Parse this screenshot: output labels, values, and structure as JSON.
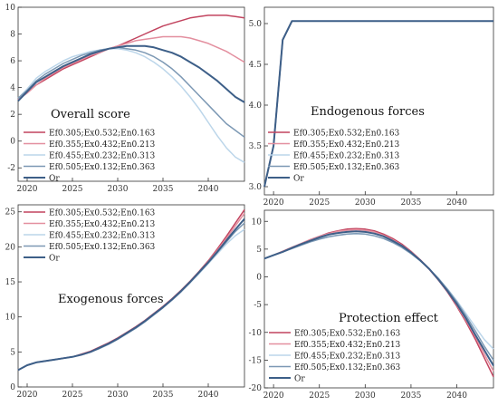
{
  "figure": {
    "series_names": [
      "Ef0.305;Ex0.532;En0.163",
      "Ef0.355;Ex0.432;En0.213",
      "Ef0.455;Ex0.232;En0.313",
      "Ef0.505;Ex0.132;En0.363",
      "Or"
    ],
    "series_colors": [
      "#c2445f",
      "#e38f9f",
      "#bcd6ea",
      "#7c98b4",
      "#3d5f88"
    ]
  },
  "chart_data": [
    {
      "id": "overall",
      "type": "line",
      "title": "Overall score",
      "xlim": [
        2019,
        2044
      ],
      "ylim": [
        -3,
        10
      ],
      "xticks": [
        2020,
        2025,
        2030,
        2035,
        2040
      ],
      "yticks": [
        -2,
        0,
        2,
        4,
        6,
        8,
        10
      ],
      "x": [
        2019,
        2020,
        2021,
        2022,
        2023,
        2024,
        2025,
        2026,
        2027,
        2028,
        2029,
        2030,
        2031,
        2032,
        2033,
        2034,
        2035,
        2036,
        2037,
        2038,
        2039,
        2040,
        2041,
        2042,
        2043,
        2044
      ],
      "series": [
        {
          "name": "Ef0.305;Ex0.532;En0.163",
          "values": [
            3.1,
            3.6,
            4.2,
            4.6,
            5.0,
            5.4,
            5.7,
            6.0,
            6.3,
            6.6,
            6.9,
            7.1,
            7.4,
            7.7,
            8.0,
            8.3,
            8.6,
            8.8,
            9.0,
            9.2,
            9.3,
            9.4,
            9.4,
            9.4,
            9.3,
            9.2
          ]
        },
        {
          "name": "Ef0.355;Ex0.432;En0.213",
          "values": [
            3.1,
            3.6,
            4.2,
            4.7,
            5.1,
            5.5,
            5.8,
            6.1,
            6.4,
            6.6,
            6.9,
            7.1,
            7.3,
            7.5,
            7.6,
            7.7,
            7.8,
            7.8,
            7.8,
            7.7,
            7.5,
            7.3,
            7.0,
            6.7,
            6.3,
            5.9
          ]
        },
        {
          "name": "Ef0.455;Ex0.232;En0.313",
          "values": [
            3.2,
            3.9,
            4.7,
            5.2,
            5.6,
            6.0,
            6.3,
            6.5,
            6.7,
            6.8,
            6.9,
            6.9,
            6.8,
            6.6,
            6.3,
            5.9,
            5.4,
            4.8,
            4.1,
            3.3,
            2.4,
            1.4,
            0.4,
            -0.5,
            -1.2,
            -1.6
          ]
        },
        {
          "name": "Ef0.505;Ex0.132;En0.363",
          "values": [
            3.2,
            3.8,
            4.5,
            5.0,
            5.4,
            5.8,
            6.1,
            6.4,
            6.6,
            6.8,
            6.9,
            7.0,
            6.9,
            6.8,
            6.6,
            6.3,
            5.9,
            5.4,
            4.8,
            4.1,
            3.4,
            2.7,
            2.0,
            1.3,
            0.8,
            0.3
          ]
        },
        {
          "name": "Or",
          "values": [
            3.0,
            3.7,
            4.4,
            4.8,
            5.2,
            5.6,
            5.9,
            6.2,
            6.5,
            6.7,
            6.9,
            7.0,
            7.1,
            7.1,
            7.1,
            7.0,
            6.8,
            6.6,
            6.3,
            5.9,
            5.5,
            5.0,
            4.5,
            3.9,
            3.3,
            2.9
          ]
        }
      ]
    },
    {
      "id": "endogenous",
      "type": "line",
      "title": "Endogenous forces",
      "xlim": [
        2019,
        2044
      ],
      "ylim": [
        2.9,
        5.2
      ],
      "xticks": [
        2020,
        2025,
        2030,
        2035,
        2040
      ],
      "yticks": [
        3.0,
        3.5,
        4.0,
        4.5,
        5.0
      ],
      "x": [
        2019,
        2020,
        2021,
        2022,
        2023,
        2025,
        2030,
        2035,
        2040,
        2044
      ],
      "series": [
        {
          "name": "Ef0.305;Ex0.532;En0.163",
          "values": [
            3.0,
            3.5,
            4.8,
            5.03,
            5.03,
            5.03,
            5.03,
            5.03,
            5.03,
            5.03
          ]
        },
        {
          "name": "Ef0.355;Ex0.432;En0.213",
          "values": [
            3.0,
            3.5,
            4.8,
            5.03,
            5.03,
            5.03,
            5.03,
            5.03,
            5.03,
            5.03
          ]
        },
        {
          "name": "Ef0.455;Ex0.232;En0.313",
          "values": [
            3.0,
            3.5,
            4.8,
            5.03,
            5.03,
            5.03,
            5.03,
            5.03,
            5.03,
            5.03
          ]
        },
        {
          "name": "Ef0.505;Ex0.132;En0.363",
          "values": [
            3.0,
            3.5,
            4.8,
            5.03,
            5.03,
            5.03,
            5.03,
            5.03,
            5.03,
            5.03
          ]
        },
        {
          "name": "Or",
          "values": [
            3.0,
            3.5,
            4.8,
            5.03,
            5.03,
            5.03,
            5.03,
            5.03,
            5.03,
            5.03
          ]
        }
      ]
    },
    {
      "id": "exogenous",
      "type": "line",
      "title": "Exogenous forces",
      "xlim": [
        2019,
        2044
      ],
      "ylim": [
        0,
        26
      ],
      "xticks": [
        2020,
        2025,
        2030,
        2035,
        2040
      ],
      "yticks": [
        0,
        5,
        10,
        15,
        20,
        25
      ],
      "x": [
        2019,
        2020,
        2021,
        2022,
        2023,
        2024,
        2025,
        2026,
        2027,
        2028,
        2029,
        2030,
        2031,
        2032,
        2033,
        2034,
        2035,
        2036,
        2037,
        2038,
        2039,
        2040,
        2041,
        2042,
        2043,
        2044
      ],
      "series": [
        {
          "name": "Ef0.305;Ex0.532;En0.163",
          "values": [
            2.4,
            3.1,
            3.5,
            3.7,
            3.9,
            4.1,
            4.3,
            4.7,
            5.1,
            5.7,
            6.3,
            7.0,
            7.8,
            8.6,
            9.5,
            10.5,
            11.5,
            12.6,
            13.8,
            15.1,
            16.5,
            18.0,
            19.7,
            21.5,
            23.4,
            25.3
          ]
        },
        {
          "name": "Ef0.355;Ex0.432;En0.213",
          "values": [
            2.4,
            3.1,
            3.5,
            3.7,
            3.9,
            4.1,
            4.3,
            4.6,
            5.0,
            5.6,
            6.2,
            6.9,
            7.7,
            8.5,
            9.4,
            10.4,
            11.4,
            12.5,
            13.7,
            15.0,
            16.4,
            17.9,
            19.5,
            21.2,
            23.0,
            24.8
          ]
        },
        {
          "name": "Ef0.455;Ex0.232;En0.313",
          "values": [
            2.4,
            3.1,
            3.5,
            3.7,
            3.9,
            4.1,
            4.3,
            4.6,
            5.0,
            5.5,
            6.1,
            6.8,
            7.6,
            8.4,
            9.3,
            10.3,
            11.3,
            12.4,
            13.6,
            14.9,
            16.2,
            17.6,
            19.0,
            20.4,
            21.6,
            22.5
          ]
        },
        {
          "name": "Ef0.505;Ex0.132;En0.363",
          "values": [
            2.4,
            3.1,
            3.5,
            3.7,
            3.9,
            4.1,
            4.3,
            4.6,
            5.0,
            5.5,
            6.1,
            6.8,
            7.6,
            8.4,
            9.3,
            10.3,
            11.3,
            12.4,
            13.6,
            14.9,
            16.3,
            17.7,
            19.2,
            20.7,
            22.2,
            23.4
          ]
        },
        {
          "name": "Or",
          "values": [
            2.4,
            3.1,
            3.5,
            3.7,
            3.9,
            4.1,
            4.3,
            4.6,
            5.0,
            5.6,
            6.2,
            6.9,
            7.7,
            8.5,
            9.4,
            10.4,
            11.4,
            12.5,
            13.7,
            15.0,
            16.4,
            17.8,
            19.3,
            20.9,
            22.5,
            24.0
          ]
        }
      ]
    },
    {
      "id": "protection",
      "type": "line",
      "title": "Protection effect",
      "xlim": [
        2019,
        2044
      ],
      "ylim": [
        -20,
        12
      ],
      "xticks": [
        2020,
        2025,
        2030,
        2035,
        2040
      ],
      "yticks": [
        -20,
        -15,
        -10,
        -5,
        0,
        5,
        10
      ],
      "x": [
        2019,
        2020,
        2021,
        2022,
        2023,
        2024,
        2025,
        2026,
        2027,
        2028,
        2029,
        2030,
        2031,
        2032,
        2033,
        2034,
        2035,
        2036,
        2037,
        2038,
        2039,
        2040,
        2041,
        2042,
        2043,
        2044
      ],
      "series": [
        {
          "name": "Ef0.305;Ex0.532;En0.163",
          "values": [
            3.3,
            3.9,
            4.6,
            5.3,
            6.0,
            6.7,
            7.3,
            7.9,
            8.3,
            8.6,
            8.7,
            8.6,
            8.3,
            7.7,
            6.9,
            5.9,
            4.6,
            3.1,
            1.4,
            -0.6,
            -2.8,
            -5.3,
            -8.1,
            -11.2,
            -14.6,
            -18.0
          ]
        },
        {
          "name": "Ef0.355;Ex0.432;En0.213",
          "values": [
            3.3,
            3.9,
            4.6,
            5.3,
            6.0,
            6.7,
            7.3,
            7.8,
            8.2,
            8.4,
            8.5,
            8.4,
            8.1,
            7.5,
            6.7,
            5.7,
            4.5,
            3.0,
            1.3,
            -0.6,
            -2.7,
            -5.1,
            -7.8,
            -10.7,
            -13.9,
            -17.0
          ]
        },
        {
          "name": "Ef0.455;Ex0.232;En0.313",
          "values": [
            3.3,
            3.9,
            4.5,
            5.1,
            5.7,
            6.3,
            6.8,
            7.2,
            7.5,
            7.7,
            7.8,
            7.7,
            7.4,
            6.9,
            6.2,
            5.3,
            4.2,
            2.9,
            1.4,
            -0.3,
            -2.2,
            -4.3,
            -6.6,
            -9.0,
            -11.3,
            -13.0
          ]
        },
        {
          "name": "Ef0.505;Ex0.132;En0.363",
          "values": [
            3.3,
            3.9,
            4.5,
            5.1,
            5.7,
            6.3,
            6.8,
            7.2,
            7.5,
            7.7,
            7.8,
            7.7,
            7.4,
            6.9,
            6.2,
            5.3,
            4.2,
            2.9,
            1.4,
            -0.3,
            -2.3,
            -4.5,
            -7.0,
            -9.7,
            -12.5,
            -15.0
          ]
        },
        {
          "name": "Or",
          "values": [
            3.3,
            3.9,
            4.5,
            5.2,
            5.9,
            6.5,
            7.1,
            7.6,
            7.9,
            8.1,
            8.2,
            8.1,
            7.8,
            7.3,
            6.5,
            5.6,
            4.4,
            3.0,
            1.4,
            -0.5,
            -2.6,
            -4.9,
            -7.5,
            -10.4,
            -13.2,
            -16.0
          ]
        }
      ]
    }
  ]
}
